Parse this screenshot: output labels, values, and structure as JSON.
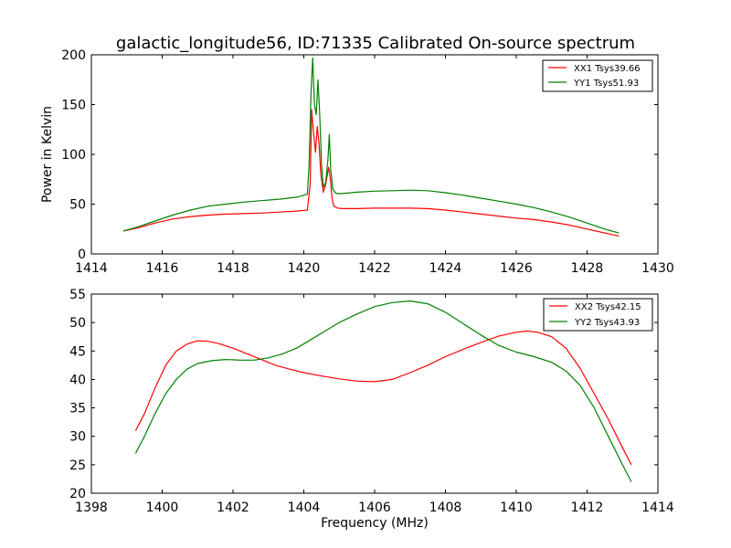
{
  "chart_data": [
    {
      "type": "line",
      "title": "galactic_longitude56, ID:71335 Calibrated On-source spectrum",
      "xlabel": "",
      "ylabel": "Power in Kelvin",
      "xlim": [
        1414,
        1430
      ],
      "ylim": [
        0,
        200
      ],
      "xticks": [
        1414,
        1416,
        1418,
        1420,
        1422,
        1424,
        1426,
        1428,
        1430
      ],
      "yticks": [
        0,
        50,
        100,
        150,
        200
      ],
      "grid": false,
      "legend_position": "top-right",
      "series": [
        {
          "name": "XX1 Tsys39.66",
          "color": "#ff0000",
          "x": [
            1414.9,
            1415.3,
            1415.8,
            1416.3,
            1416.8,
            1417.3,
            1417.8,
            1418.3,
            1418.8,
            1419.3,
            1419.8,
            1420.1,
            1420.18,
            1420.22,
            1420.28,
            1420.33,
            1420.38,
            1420.43,
            1420.48,
            1420.55,
            1420.62,
            1420.7,
            1420.75,
            1420.8,
            1420.85,
            1420.95,
            1421.1,
            1421.5,
            1422.0,
            1422.5,
            1423.0,
            1423.5,
            1424.0,
            1424.5,
            1425.0,
            1425.5,
            1426.0,
            1426.5,
            1427.0,
            1427.5,
            1428.0,
            1428.5,
            1428.9
          ],
          "y": [
            23,
            26,
            31,
            35,
            37.5,
            39,
            40,
            40.5,
            41,
            42,
            43,
            44,
            70,
            145,
            120,
            102,
            128,
            110,
            80,
            62,
            70,
            87,
            75,
            55,
            48,
            46,
            45.5,
            45.5,
            46,
            46,
            46,
            45.5,
            44,
            42,
            40,
            38,
            36,
            34.5,
            32,
            29,
            25,
            21,
            18
          ]
        },
        {
          "name": "YY1 Tsys51.93",
          "color": "#008000",
          "x": [
            1414.9,
            1415.3,
            1415.8,
            1416.3,
            1416.8,
            1417.3,
            1417.8,
            1418.3,
            1418.8,
            1419.3,
            1419.8,
            1420.1,
            1420.15,
            1420.2,
            1420.25,
            1420.3,
            1420.35,
            1420.4,
            1420.45,
            1420.5,
            1420.55,
            1420.62,
            1420.68,
            1420.72,
            1420.76,
            1420.82,
            1420.9,
            1421.0,
            1421.2,
            1421.5,
            1422.0,
            1422.5,
            1423.0,
            1423.5,
            1424.0,
            1424.5,
            1425.0,
            1425.5,
            1426.0,
            1426.5,
            1427.0,
            1427.5,
            1428.0,
            1428.5,
            1428.9
          ],
          "y": [
            23,
            27,
            33,
            39,
            44,
            48,
            50,
            52,
            53.5,
            55,
            57,
            60,
            90,
            160,
            197,
            150,
            140,
            175,
            140,
            90,
            67,
            72,
            95,
            120,
            85,
            65,
            61,
            60.5,
            61,
            62,
            63,
            63.5,
            64,
            63.5,
            61.5,
            59,
            56,
            53,
            50,
            46.5,
            42,
            37,
            31,
            25,
            21
          ]
        }
      ]
    },
    {
      "type": "line",
      "title": "",
      "xlabel": "Frequency (MHz)",
      "ylabel": "",
      "xlim": [
        1398,
        1414
      ],
      "ylim": [
        20,
        55
      ],
      "xticks": [
        1398,
        1400,
        1402,
        1404,
        1406,
        1408,
        1410,
        1412,
        1414
      ],
      "yticks": [
        20,
        25,
        30,
        35,
        40,
        45,
        50,
        55
      ],
      "grid": false,
      "legend_position": "top-right",
      "series": [
        {
          "name": "XX2 Tsys42.15",
          "color": "#ff0000",
          "x": [
            1399.25,
            1399.5,
            1399.8,
            1400.1,
            1400.4,
            1400.7,
            1401.0,
            1401.3,
            1401.6,
            1402.0,
            1402.4,
            1402.8,
            1403.2,
            1403.6,
            1404.0,
            1404.5,
            1405.0,
            1405.5,
            1406.0,
            1406.5,
            1407.0,
            1407.5,
            1408.0,
            1408.5,
            1409.0,
            1409.5,
            1410.0,
            1410.3,
            1410.6,
            1411.0,
            1411.4,
            1411.8,
            1412.2,
            1412.6,
            1413.0,
            1413.25
          ],
          "y": [
            31,
            34,
            38.5,
            42.5,
            45,
            46.2,
            46.8,
            46.7,
            46.3,
            45.5,
            44.5,
            43.5,
            42.5,
            41.8,
            41.2,
            40.6,
            40.1,
            39.7,
            39.6,
            40.0,
            41.2,
            42.5,
            44.0,
            45.3,
            46.5,
            47.6,
            48.3,
            48.5,
            48.3,
            47.5,
            45.5,
            42,
            37.5,
            33,
            28,
            25
          ]
        },
        {
          "name": "YY2 Tsys43.93",
          "color": "#008000",
          "x": [
            1399.25,
            1399.5,
            1399.8,
            1400.1,
            1400.4,
            1400.7,
            1401.0,
            1401.4,
            1401.8,
            1402.2,
            1402.6,
            1403.0,
            1403.4,
            1403.8,
            1404.2,
            1404.6,
            1405.0,
            1405.5,
            1406.0,
            1406.5,
            1407.0,
            1407.5,
            1408.0,
            1408.5,
            1409.0,
            1409.5,
            1410.0,
            1410.5,
            1411.0,
            1411.4,
            1411.8,
            1412.2,
            1412.6,
            1413.0,
            1413.25
          ],
          "y": [
            27,
            30,
            34,
            37.5,
            40,
            41.8,
            42.8,
            43.3,
            43.5,
            43.4,
            43.4,
            43.8,
            44.5,
            45.5,
            47,
            48.5,
            50,
            51.5,
            52.8,
            53.5,
            53.8,
            53.3,
            51.8,
            49.8,
            47.8,
            46,
            44.8,
            44,
            43,
            41.5,
            39,
            35,
            30,
            25,
            22
          ]
        }
      ]
    }
  ]
}
